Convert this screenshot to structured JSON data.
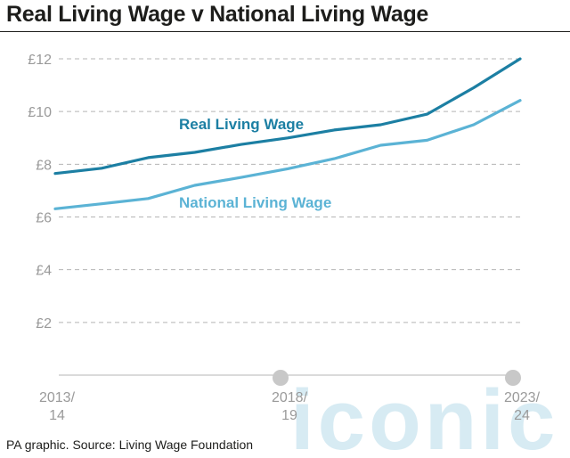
{
  "title": "Real Living Wage v National Living Wage",
  "source": "PA graphic. Source: Living Wage Foundation",
  "watermark": "iconic",
  "colors": {
    "real": "#1c7fa3",
    "national": "#5bb3d5",
    "grid": "#b5b5b5",
    "tick": "#9a9a9a",
    "marker": "#c8c8c8",
    "watermark": "#d7ebf3"
  },
  "chart_data": {
    "type": "line",
    "title": "Real Living Wage v National Living Wage",
    "x": [
      2013,
      2014,
      2015,
      2016,
      2017,
      2018,
      2019,
      2020,
      2021,
      2022,
      2023
    ],
    "x_ticks": [
      {
        "value": 2013,
        "line1": "2013/",
        "line2": "14"
      },
      {
        "value": 2018,
        "line1": "2018/",
        "line2": "19"
      },
      {
        "value": 2023,
        "line1": "2023/",
        "line2": "24"
      }
    ],
    "y_ticks": [
      {
        "value": 2,
        "label": "£2"
      },
      {
        "value": 4,
        "label": "£4"
      },
      {
        "value": 6,
        "label": "£6"
      },
      {
        "value": 8,
        "label": "£8"
      },
      {
        "value": 10,
        "label": "£10"
      },
      {
        "value": 12,
        "label": "£12"
      }
    ],
    "ylim": [
      0,
      12
    ],
    "grid": true,
    "series": [
      {
        "name": "Real Living Wage",
        "key": "real",
        "values": [
          7.65,
          7.85,
          8.25,
          8.45,
          8.75,
          9.0,
          9.3,
          9.5,
          9.9,
          10.9,
          12.0
        ]
      },
      {
        "name": "National Living Wage",
        "key": "national",
        "values": [
          6.31,
          6.5,
          6.7,
          7.2,
          7.5,
          7.83,
          8.21,
          8.72,
          8.91,
          9.5,
          10.42
        ]
      }
    ]
  }
}
